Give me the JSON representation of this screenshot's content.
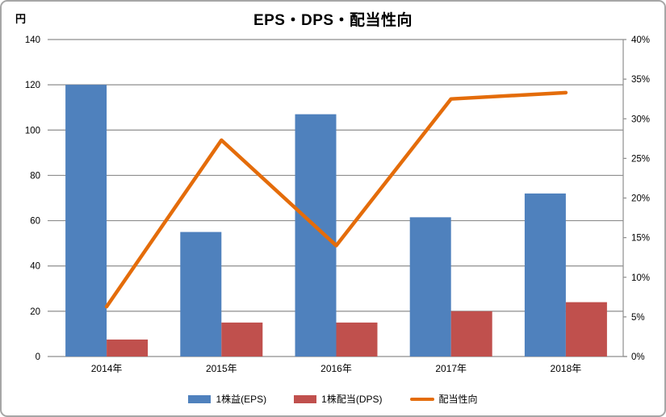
{
  "title": "EPS・DPS・配当性向",
  "chart_data": {
    "type": "combo-bar-line",
    "title": "EPS・DPS・配当性向",
    "categories": [
      "2014年",
      "2015年",
      "2016年",
      "2017年",
      "2018年"
    ],
    "series": [
      {
        "name": "1株益(EPS)",
        "type": "bar",
        "axis": "left",
        "color": "#4F81BD",
        "values": [
          120,
          55,
          107,
          61.5,
          72
        ]
      },
      {
        "name": "1株配当(DPS)",
        "type": "bar",
        "axis": "left",
        "color": "#C0504D",
        "values": [
          7.5,
          15,
          15,
          20,
          24
        ]
      },
      {
        "name": "配当性向",
        "type": "line",
        "axis": "right",
        "color": "#E46C0A",
        "values": [
          6.3,
          27.3,
          14.0,
          32.5,
          33.3
        ]
      }
    ],
    "left_axis": {
      "unit_label": "円",
      "min": 0,
      "max": 140,
      "step": 20,
      "tick_labels": [
        "140",
        "120",
        "100",
        "80",
        "60",
        "40",
        "20",
        "0"
      ]
    },
    "right_axis": {
      "min": 0,
      "max": 40,
      "step": 5,
      "tick_labels": [
        "40%",
        "35%",
        "30%",
        "25%",
        "20%",
        "15%",
        "10%",
        "5%",
        "0%"
      ]
    },
    "grid": true,
    "legend_position": "bottom",
    "gridline_color": "#8E8E8E",
    "axis_line_color": "#8E8E8E",
    "text_color": "#000000",
    "frame_border_color": "#A6A6A6"
  }
}
